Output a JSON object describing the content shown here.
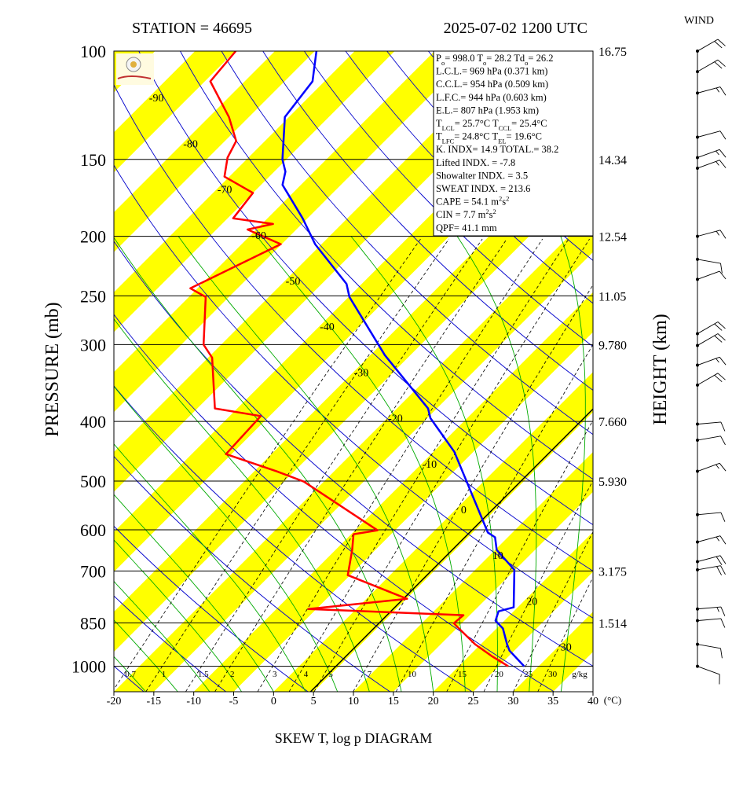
{
  "chart_data": {
    "type": "skewt",
    "title_left": "STATION = 46695",
    "title_right": "2025-07-02 1200 UTC",
    "xlabel": "SKEW T, log p DIAGRAM",
    "ylabel": "PRESSURE (mb)",
    "y2label": "HEIGHT (km)",
    "x_unit": "(°C)",
    "wind_label": "WIND",
    "xlim": [
      -20,
      40
    ],
    "xticks": [
      -20,
      -15,
      -10,
      -5,
      0,
      5,
      10,
      15,
      20,
      25,
      30,
      35,
      40
    ],
    "ylim": [
      1100,
      100
    ],
    "yticks": [
      100,
      150,
      200,
      250,
      300,
      400,
      500,
      600,
      700,
      850,
      1000
    ],
    "log_y": true,
    "height_ticks": [
      {
        "pressure": 100,
        "label": "16.75"
      },
      {
        "pressure": 150,
        "label": "14.34"
      },
      {
        "pressure": 200,
        "label": "12.54"
      },
      {
        "pressure": 250,
        "label": "11.05"
      },
      {
        "pressure": 300,
        "label": "9.780"
      },
      {
        "pressure": 400,
        "label": "7.660"
      },
      {
        "pressure": 500,
        "label": "5.930"
      },
      {
        "pressure": 700,
        "label": "3.175"
      },
      {
        "pressure": 850,
        "label": "1.514"
      }
    ],
    "isotherm_labels": [
      -90,
      -80,
      -70,
      -60,
      -50,
      -40,
      -30,
      -20,
      -10,
      0,
      10,
      20,
      30
    ],
    "mixing_ratio_labels": [
      0.7,
      1,
      1.5,
      2,
      3,
      4,
      5,
      7,
      10,
      15,
      20,
      25,
      30
    ],
    "mixing_ratio_unit": "g/kg",
    "series": [
      {
        "color": "#0000ff",
        "pressure": [
          100,
          112,
          128,
          150,
          157,
          165,
          187,
          206,
          239,
          251,
          312,
          381,
          395,
          448,
          606,
          617,
          647,
          697,
          802,
          814,
          843,
          868,
          921,
          943,
          1000
        ],
        "values": [
          -74.8,
          -71.5,
          -70.5,
          -65.5,
          -63.6,
          -62.3,
          -55.6,
          -50.8,
          -41.9,
          -39.9,
          -28.2,
          -16.1,
          -14.6,
          -7.4,
          6.9,
          8.4,
          10.2,
          14.9,
          19.5,
          18.1,
          18.9,
          20.8,
          23.3,
          24.4,
          28.2
        ]
      },
      {
        "color": "#ff0000",
        "pressure": [
          100,
          112,
          128,
          140,
          149,
          160,
          170,
          187,
          191,
          195,
          206,
          243,
          251,
          300,
          315,
          381,
          392,
          452,
          482,
          501,
          601,
          610,
          647,
          711,
          777,
          807,
          826,
          851,
          863,
          921,
          962,
          1000
        ],
        "values": [
          -84.9,
          -84.3,
          -77.5,
          -73.6,
          -72.6,
          -70.6,
          -65.0,
          -64.3,
          -58.6,
          -61.1,
          -55.1,
          -60.9,
          -57.9,
          -52.2,
          -49.5,
          -42.8,
          -36.1,
          -35.7,
          -27.2,
          -22.5,
          -7.2,
          -9.7,
          -7.9,
          -5.3,
          5.1,
          -6.0,
          14.2,
          14.0,
          14.9,
          19.3,
          22.8,
          26.2
        ]
      }
    ],
    "winds": {
      "pressure": [
        100,
        108,
        117,
        138,
        149,
        155,
        200,
        218,
        235,
        288,
        301,
        324,
        349,
        404,
        429,
        482,
        567,
        628,
        676,
        697,
        807,
        843,
        921,
        1000
      ],
      "direction": [
        60,
        60,
        75,
        75,
        70,
        70,
        75,
        100,
        70,
        60,
        60,
        70,
        60,
        85,
        80,
        70,
        85,
        75,
        75,
        80,
        85,
        85,
        100,
        110
      ],
      "speed": [
        20,
        20,
        15,
        10,
        15,
        15,
        15,
        10,
        10,
        20,
        20,
        15,
        20,
        10,
        10,
        15,
        10,
        15,
        20,
        20,
        15,
        10,
        10,
        10
      ]
    },
    "info": [
      [
        {
          "text": "P"
        },
        {
          "sub": "o"
        },
        {
          "text": "= 998.0 T"
        },
        {
          "sub": "o"
        },
        {
          "text": "= 28.2 Td"
        },
        {
          "sub": "o"
        },
        {
          "text": "= 26.2"
        }
      ],
      [
        {
          "text": "L.C.L.= 969 hPa (0.371 km)"
        }
      ],
      [
        {
          "text": "C.C.L.= 954 hPa (0.509 km)"
        }
      ],
      [
        {
          "text": "L.F.C.= 944 hPa (0.603 km)"
        }
      ],
      [
        {
          "text": "E.L.= 807 hPa (1.953 km)"
        }
      ],
      [
        {
          "text": "T"
        },
        {
          "sub": "LCL"
        },
        {
          "text": "= 25.7°C T"
        },
        {
          "sub": "CCL"
        },
        {
          "text": "= 25.4°C"
        }
      ],
      [
        {
          "text": "T"
        },
        {
          "sub": "LFC"
        },
        {
          "text": "= 24.8°C T"
        },
        {
          "sub": "EL"
        },
        {
          "text": "= 19.6°C"
        }
      ],
      [
        {
          "text": "K. INDX= 14.9 TOTAL.= 38.2"
        }
      ],
      [
        {
          "text": "Lifted INDX. = -7.8"
        }
      ],
      [
        {
          "text": "Showalter INDX. = 3.5"
        }
      ],
      [
        {
          "text": "SWEAT INDX. = 213.6"
        }
      ],
      [
        {
          "text": "CAPE = 54.1 m"
        },
        {
          "sup": "2"
        },
        {
          "text": "s"
        },
        {
          "sup": "2"
        }
      ],
      [
        {
          "text": "CIN = 7.7 m"
        },
        {
          "sup": "2"
        },
        {
          "text": "s"
        },
        {
          "sup": "2"
        }
      ],
      [
        {
          "text": "QPF= 41.1 mm"
        }
      ]
    ]
  }
}
